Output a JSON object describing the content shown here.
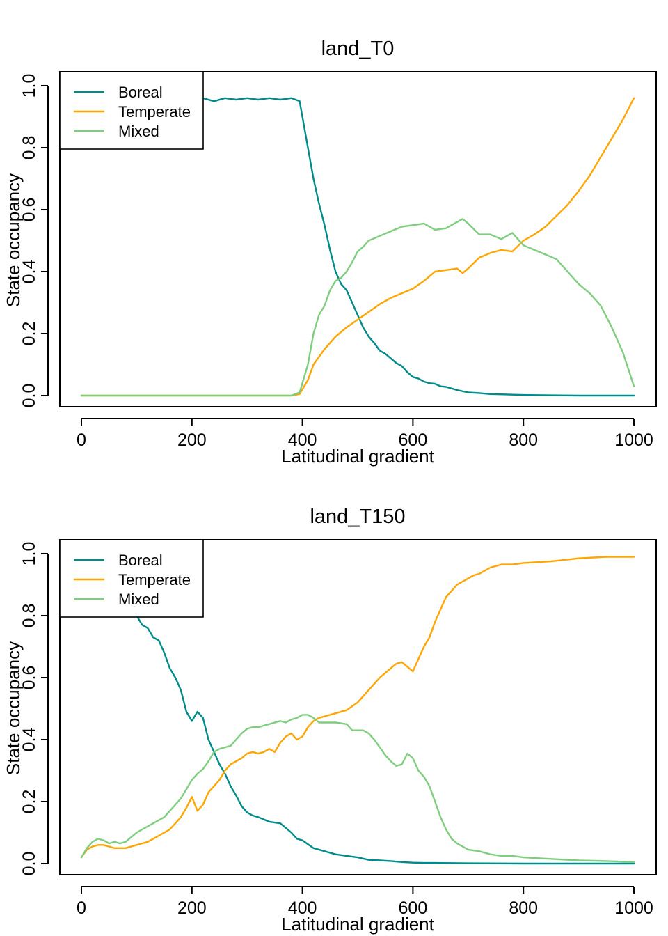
{
  "chart_data": [
    {
      "type": "line",
      "title": "land_T0",
      "xlabel": "Latitudinal gradient",
      "ylabel": "State occupancy",
      "xlim": [
        0,
        1000
      ],
      "ylim": [
        0,
        1
      ],
      "xticks": [
        0,
        200,
        400,
        600,
        800,
        1000
      ],
      "yticks": [
        0.0,
        0.2,
        0.4,
        0.6,
        0.8,
        1.0
      ],
      "xtick_labels": [
        "0",
        "200",
        "400",
        "600",
        "800",
        "1000"
      ],
      "ytick_labels": [
        "0.0",
        "0.2",
        "0.4",
        "0.6",
        "0.8",
        "1.0"
      ],
      "legend": "top-left",
      "grid": false,
      "series": [
        {
          "name": "Boreal",
          "color": "#008B8B",
          "x": [
            0,
            100,
            200,
            220,
            240,
            260,
            280,
            300,
            320,
            340,
            360,
            380,
            395,
            410,
            420,
            430,
            440,
            450,
            460,
            470,
            480,
            490,
            500,
            510,
            520,
            530,
            540,
            550,
            560,
            570,
            580,
            590,
            600,
            610,
            620,
            630,
            640,
            650,
            660,
            680,
            700,
            720,
            740,
            760,
            780,
            800,
            850,
            900,
            950,
            1000
          ],
          "y": [
            0.96,
            0.96,
            0.96,
            0.96,
            0.95,
            0.96,
            0.955,
            0.96,
            0.955,
            0.96,
            0.955,
            0.96,
            0.95,
            0.8,
            0.7,
            0.62,
            0.55,
            0.47,
            0.4,
            0.36,
            0.34,
            0.3,
            0.26,
            0.22,
            0.19,
            0.17,
            0.145,
            0.135,
            0.12,
            0.105,
            0.095,
            0.075,
            0.06,
            0.055,
            0.045,
            0.04,
            0.038,
            0.03,
            0.028,
            0.018,
            0.01,
            0.008,
            0.005,
            0.004,
            0.003,
            0.002,
            0.001,
            0.0,
            0.0,
            0.0
          ]
        },
        {
          "name": "Temperate",
          "color": "#FFA500",
          "x": [
            0,
            100,
            200,
            300,
            380,
            395,
            410,
            420,
            440,
            460,
            480,
            500,
            520,
            540,
            560,
            580,
            600,
            620,
            640,
            660,
            680,
            690,
            700,
            720,
            740,
            760,
            780,
            800,
            820,
            840,
            860,
            880,
            900,
            920,
            940,
            960,
            980,
            1000
          ],
          "y": [
            0,
            0,
            0,
            0,
            0,
            0.005,
            0.05,
            0.1,
            0.15,
            0.19,
            0.22,
            0.245,
            0.27,
            0.295,
            0.315,
            0.33,
            0.345,
            0.37,
            0.4,
            0.405,
            0.41,
            0.395,
            0.41,
            0.445,
            0.46,
            0.47,
            0.465,
            0.5,
            0.52,
            0.545,
            0.58,
            0.615,
            0.66,
            0.71,
            0.77,
            0.83,
            0.89,
            0.96
          ]
        },
        {
          "name": "Mixed",
          "color": "#7FCD7F",
          "x": [
            0,
            100,
            200,
            300,
            380,
            395,
            410,
            420,
            430,
            440,
            450,
            460,
            470,
            480,
            490,
            500,
            510,
            520,
            540,
            560,
            580,
            600,
            620,
            640,
            660,
            680,
            690,
            700,
            720,
            740,
            760,
            780,
            800,
            820,
            840,
            860,
            880,
            900,
            920,
            940,
            960,
            980,
            1000
          ],
          "y": [
            0,
            0,
            0,
            0,
            0,
            0.01,
            0.1,
            0.2,
            0.26,
            0.29,
            0.34,
            0.37,
            0.38,
            0.4,
            0.43,
            0.465,
            0.48,
            0.5,
            0.515,
            0.53,
            0.545,
            0.55,
            0.555,
            0.535,
            0.54,
            0.56,
            0.57,
            0.555,
            0.52,
            0.52,
            0.505,
            0.525,
            0.485,
            0.47,
            0.455,
            0.44,
            0.4,
            0.36,
            0.33,
            0.29,
            0.22,
            0.14,
            0.03
          ]
        }
      ]
    },
    {
      "type": "line",
      "title": "land_T150",
      "xlabel": "Latitudinal gradient",
      "ylabel": "State occupancy",
      "xlim": [
        0,
        1000
      ],
      "ylim": [
        0,
        1
      ],
      "xticks": [
        0,
        200,
        400,
        600,
        800,
        1000
      ],
      "yticks": [
        0.0,
        0.2,
        0.4,
        0.6,
        0.8,
        1.0
      ],
      "xtick_labels": [
        "0",
        "200",
        "400",
        "600",
        "800",
        "1000"
      ],
      "ytick_labels": [
        "0.0",
        "0.2",
        "0.4",
        "0.6",
        "0.8",
        "1.0"
      ],
      "legend": "top-left",
      "grid": false,
      "series": [
        {
          "name": "Boreal",
          "color": "#008B8B",
          "x": [
            0,
            10,
            20,
            40,
            60,
            80,
            100,
            110,
            120,
            130,
            140,
            150,
            160,
            170,
            180,
            190,
            200,
            210,
            220,
            230,
            240,
            250,
            260,
            270,
            280,
            290,
            300,
            310,
            320,
            340,
            360,
            380,
            390,
            400,
            420,
            440,
            460,
            480,
            500,
            520,
            540,
            560,
            580,
            600,
            620,
            640,
            700,
            800,
            1000
          ],
          "y": [
            0.99,
            0.98,
            0.97,
            0.95,
            0.91,
            0.86,
            0.8,
            0.77,
            0.76,
            0.73,
            0.72,
            0.68,
            0.63,
            0.6,
            0.56,
            0.49,
            0.46,
            0.49,
            0.47,
            0.4,
            0.36,
            0.32,
            0.29,
            0.25,
            0.22,
            0.185,
            0.165,
            0.155,
            0.15,
            0.135,
            0.13,
            0.1,
            0.08,
            0.075,
            0.05,
            0.04,
            0.03,
            0.025,
            0.02,
            0.012,
            0.01,
            0.008,
            0.005,
            0.003,
            0.002,
            0.002,
            0.001,
            0.0,
            0.0
          ]
        },
        {
          "name": "Temperate",
          "color": "#FFA500",
          "x": [
            0,
            10,
            20,
            30,
            40,
            50,
            60,
            70,
            80,
            90,
            100,
            110,
            120,
            130,
            140,
            150,
            160,
            170,
            180,
            190,
            200,
            210,
            220,
            230,
            240,
            250,
            260,
            270,
            280,
            290,
            300,
            310,
            320,
            330,
            340,
            350,
            360,
            370,
            380,
            390,
            400,
            410,
            420,
            430,
            440,
            460,
            480,
            500,
            520,
            540,
            560,
            570,
            580,
            590,
            600,
            610,
            620,
            630,
            640,
            650,
            660,
            670,
            680,
            690,
            700,
            710,
            720,
            740,
            760,
            780,
            800,
            850,
            900,
            950,
            1000
          ],
          "y": [
            0.02,
            0.045,
            0.055,
            0.06,
            0.06,
            0.055,
            0.05,
            0.05,
            0.05,
            0.055,
            0.06,
            0.065,
            0.07,
            0.08,
            0.09,
            0.1,
            0.11,
            0.13,
            0.15,
            0.18,
            0.215,
            0.17,
            0.19,
            0.23,
            0.25,
            0.27,
            0.3,
            0.32,
            0.33,
            0.34,
            0.355,
            0.36,
            0.355,
            0.36,
            0.37,
            0.36,
            0.39,
            0.41,
            0.42,
            0.4,
            0.41,
            0.44,
            0.46,
            0.47,
            0.475,
            0.485,
            0.495,
            0.52,
            0.56,
            0.6,
            0.63,
            0.645,
            0.65,
            0.635,
            0.62,
            0.66,
            0.7,
            0.73,
            0.78,
            0.82,
            0.86,
            0.88,
            0.9,
            0.91,
            0.92,
            0.93,
            0.935,
            0.955,
            0.965,
            0.965,
            0.97,
            0.975,
            0.985,
            0.99,
            0.99
          ]
        },
        {
          "name": "Mixed",
          "color": "#7FCD7F",
          "x": [
            0,
            10,
            20,
            30,
            40,
            50,
            60,
            70,
            80,
            90,
            100,
            110,
            120,
            130,
            140,
            150,
            160,
            170,
            180,
            190,
            200,
            210,
            220,
            230,
            240,
            250,
            260,
            270,
            280,
            290,
            300,
            310,
            320,
            330,
            340,
            350,
            360,
            370,
            380,
            390,
            400,
            410,
            420,
            430,
            440,
            460,
            480,
            490,
            500,
            510,
            520,
            530,
            540,
            550,
            560,
            570,
            580,
            590,
            600,
            610,
            620,
            630,
            640,
            650,
            660,
            670,
            680,
            690,
            700,
            720,
            740,
            760,
            780,
            800,
            850,
            900,
            950,
            1000
          ],
          "y": [
            0.02,
            0.05,
            0.07,
            0.08,
            0.075,
            0.065,
            0.07,
            0.065,
            0.07,
            0.085,
            0.1,
            0.11,
            0.12,
            0.13,
            0.14,
            0.15,
            0.17,
            0.19,
            0.21,
            0.24,
            0.27,
            0.29,
            0.305,
            0.33,
            0.36,
            0.37,
            0.375,
            0.38,
            0.4,
            0.42,
            0.435,
            0.44,
            0.44,
            0.445,
            0.45,
            0.455,
            0.46,
            0.455,
            0.465,
            0.47,
            0.48,
            0.48,
            0.47,
            0.455,
            0.455,
            0.455,
            0.45,
            0.43,
            0.43,
            0.43,
            0.42,
            0.4,
            0.375,
            0.35,
            0.33,
            0.315,
            0.32,
            0.355,
            0.34,
            0.3,
            0.28,
            0.25,
            0.2,
            0.15,
            0.11,
            0.08,
            0.065,
            0.055,
            0.045,
            0.04,
            0.03,
            0.025,
            0.025,
            0.02,
            0.015,
            0.01,
            0.008,
            0.005
          ]
        }
      ]
    }
  ]
}
